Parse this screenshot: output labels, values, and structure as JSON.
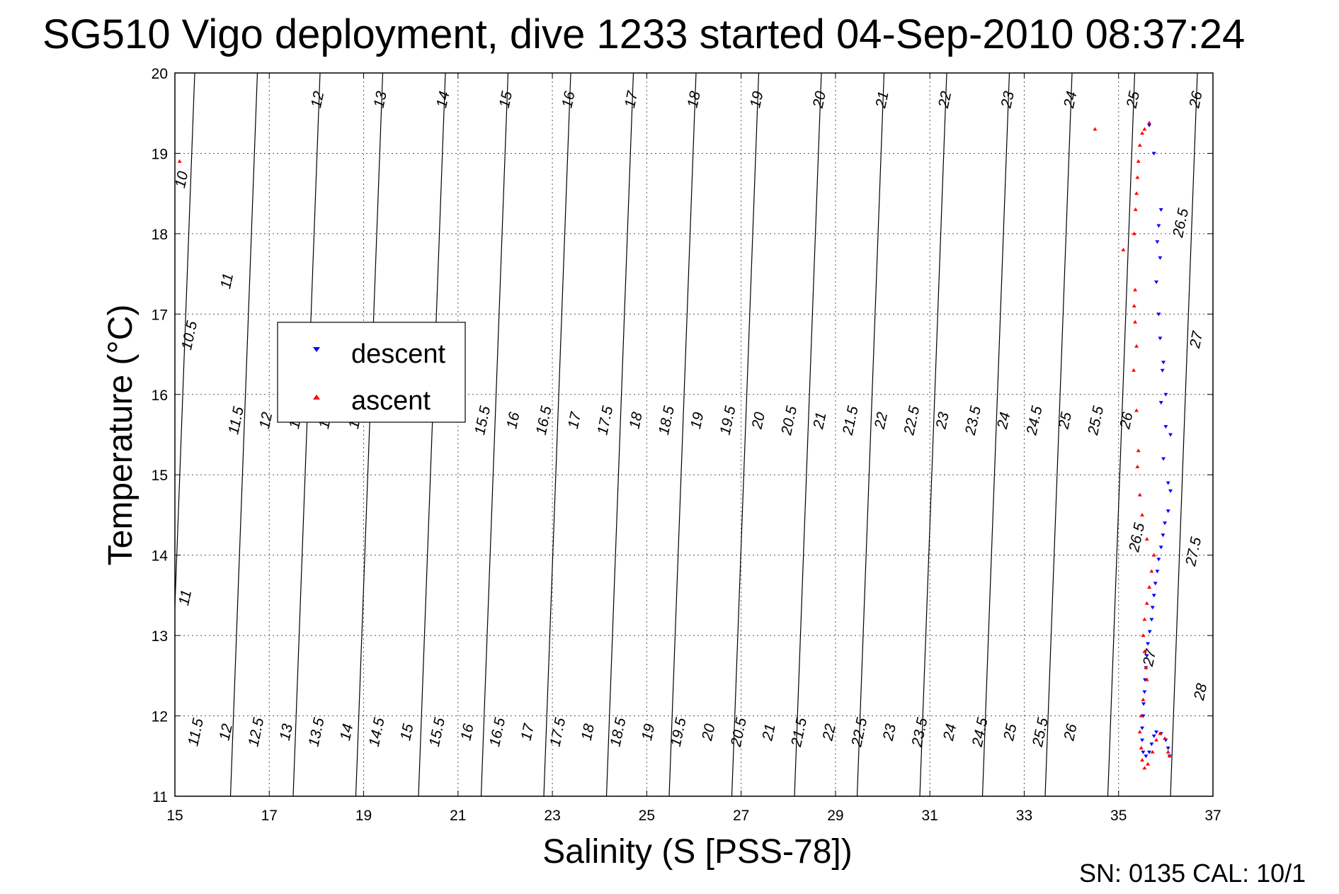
{
  "chart_data": {
    "type": "scatter",
    "title": "SG510 Vigo deployment, dive 1233 started 04-Sep-2010 08:37:24",
    "xlabel": "Salinity (S [PSS-78])",
    "ylabel": "Temperature (°C)",
    "xlim": [
      15,
      37
    ],
    "ylim": [
      11,
      20
    ],
    "xticks": [
      "15",
      "17",
      "19",
      "21",
      "23",
      "25",
      "27",
      "29",
      "31",
      "33",
      "35",
      "37"
    ],
    "yticks": [
      "11",
      "12",
      "13",
      "14",
      "15",
      "16",
      "17",
      "18",
      "19",
      "20"
    ],
    "grid": true,
    "legend_position": "left-middle",
    "footer": "SN: 0135  CAL: 10/1",
    "series": [
      {
        "name": "descent",
        "marker": "triangle-down",
        "color": "#0000ff",
        "points": [
          [
            35.65,
            19.35
          ],
          [
            35.75,
            19.0
          ],
          [
            35.9,
            18.3
          ],
          [
            35.85,
            18.1
          ],
          [
            35.82,
            17.9
          ],
          [
            35.88,
            17.7
          ],
          [
            35.8,
            17.4
          ],
          [
            35.85,
            17.0
          ],
          [
            35.88,
            16.7
          ],
          [
            35.95,
            16.4
          ],
          [
            35.93,
            16.3
          ],
          [
            36.0,
            16.0
          ],
          [
            35.9,
            15.9
          ],
          [
            36.0,
            15.6
          ],
          [
            36.1,
            15.5
          ],
          [
            35.95,
            15.2
          ],
          [
            36.05,
            14.9
          ],
          [
            36.1,
            14.8
          ],
          [
            36.05,
            14.55
          ],
          [
            35.98,
            14.4
          ],
          [
            35.94,
            14.25
          ],
          [
            35.9,
            14.1
          ],
          [
            35.85,
            13.95
          ],
          [
            35.82,
            13.8
          ],
          [
            35.78,
            13.65
          ],
          [
            35.75,
            13.5
          ],
          [
            35.72,
            13.35
          ],
          [
            35.7,
            13.2
          ],
          [
            35.66,
            13.05
          ],
          [
            35.62,
            12.9
          ],
          [
            35.6,
            12.75
          ],
          [
            35.58,
            12.6
          ],
          [
            35.56,
            12.45
          ],
          [
            35.55,
            12.3
          ],
          [
            35.53,
            12.15
          ],
          [
            35.52,
            12.0
          ],
          [
            35.5,
            11.85
          ],
          [
            35.5,
            11.7
          ],
          [
            35.52,
            11.55
          ],
          [
            35.58,
            11.5
          ],
          [
            35.65,
            11.55
          ],
          [
            35.7,
            11.65
          ],
          [
            35.75,
            11.75
          ],
          [
            35.8,
            11.8
          ],
          [
            35.9,
            11.78
          ],
          [
            36.0,
            11.7
          ],
          [
            36.05,
            11.6
          ],
          [
            36.08,
            11.5
          ]
        ]
      },
      {
        "name": "ascent",
        "marker": "triangle-up",
        "color": "#ff0000",
        "points": [
          [
            15.1,
            18.9
          ],
          [
            34.5,
            19.3
          ],
          [
            35.65,
            19.38
          ],
          [
            35.55,
            19.3
          ],
          [
            35.5,
            19.25
          ],
          [
            35.45,
            19.1
          ],
          [
            35.42,
            18.9
          ],
          [
            35.4,
            18.7
          ],
          [
            35.38,
            18.5
          ],
          [
            35.36,
            18.3
          ],
          [
            35.33,
            18.0
          ],
          [
            35.1,
            17.8
          ],
          [
            35.35,
            17.3
          ],
          [
            35.33,
            17.1
          ],
          [
            35.35,
            16.9
          ],
          [
            35.38,
            16.6
          ],
          [
            35.32,
            16.3
          ],
          [
            35.38,
            15.8
          ],
          [
            35.42,
            15.3
          ],
          [
            35.4,
            15.1
          ],
          [
            35.45,
            14.75
          ],
          [
            35.5,
            14.5
          ],
          [
            35.6,
            14.2
          ],
          [
            35.75,
            14.0
          ],
          [
            35.7,
            13.8
          ],
          [
            35.65,
            13.6
          ],
          [
            35.6,
            13.4
          ],
          [
            35.55,
            13.2
          ],
          [
            35.52,
            13.0
          ],
          [
            35.55,
            12.8
          ],
          [
            35.58,
            12.6
          ],
          [
            35.6,
            12.45
          ],
          [
            35.52,
            12.2
          ],
          [
            35.48,
            12.0
          ],
          [
            35.45,
            11.8
          ],
          [
            35.48,
            11.6
          ],
          [
            35.5,
            11.45
          ],
          [
            35.55,
            11.35
          ],
          [
            35.62,
            11.4
          ],
          [
            35.72,
            11.55
          ],
          [
            35.8,
            11.7
          ],
          [
            35.88,
            11.78
          ],
          [
            35.98,
            11.72
          ],
          [
            36.05,
            11.55
          ],
          [
            36.08,
            11.5
          ]
        ]
      }
    ]
  },
  "contour_labels": {
    "row_top": [
      "10",
      "12",
      "13",
      "14",
      "15",
      "16",
      "17",
      "18",
      "19",
      "20",
      "21",
      "22",
      "23",
      "24",
      "25",
      "26"
    ],
    "row_left": [
      "11",
      "10.5"
    ],
    "row_middle": [
      "11.5",
      "12",
      "12",
      "13",
      "14",
      "15.5",
      "16",
      "16.5",
      "17",
      "17.5",
      "18",
      "18.5",
      "19",
      "19.5",
      "20",
      "20.5",
      "21",
      "21.5",
      "22",
      "22.5",
      "23",
      "23.5",
      "24",
      "24.5",
      "25",
      "25.5",
      "26"
    ],
    "row_bottom": [
      "11.5",
      "12",
      "12.5",
      "13",
      "13.5",
      "14",
      "14.5",
      "15",
      "15.5",
      "16",
      "16.5",
      "17",
      "17.5",
      "18",
      "18.5",
      "19",
      "19.5",
      "20",
      "20.5",
      "21",
      "21.5",
      "22",
      "22.5",
      "23",
      "23.5",
      "24",
      "24.5",
      "25",
      "25.5",
      "26"
    ],
    "row_right": [
      "26.5",
      "27",
      "27.5",
      "28"
    ],
    "lower_left": [
      "11"
    ],
    "data_region": [
      "26.5",
      "27"
    ]
  }
}
